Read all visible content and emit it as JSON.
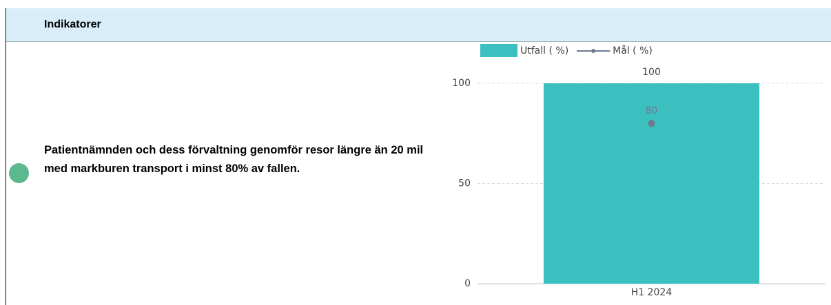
{
  "header": {
    "title": "Indikatorer"
  },
  "indicator": {
    "text": "Patientnämnden och dess förvaltning genomför resor längre än 20 mil med markburen transport i minst 80% av fallen."
  },
  "chart_data": {
    "type": "bar",
    "categories": [
      "H1 2024"
    ],
    "series": [
      {
        "name": "Utfall ( %)",
        "type": "bar",
        "color": "#3bbfbf",
        "values": [
          100
        ]
      },
      {
        "name": "Mål ( %)",
        "type": "line",
        "color": "#6b7a8f",
        "values": [
          80
        ]
      }
    ],
    "ylim": [
      0,
      100
    ],
    "yticks": [
      0,
      50,
      100
    ],
    "grid": true,
    "legend": "top"
  }
}
